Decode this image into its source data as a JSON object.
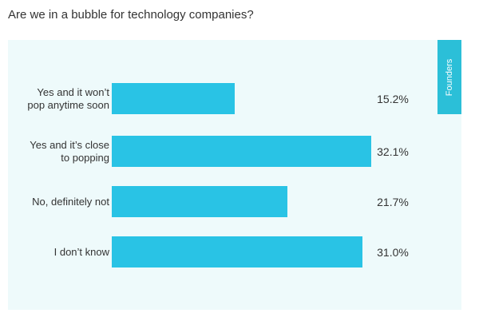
{
  "chart_data": {
    "type": "bar",
    "orientation": "horizontal",
    "title": "Are we in a bubble for technology companies?",
    "tab_label": "Founders",
    "categories": [
      "Yes and it won’t pop anytime soon",
      "Yes and it’s close to popping",
      "No, definitely not",
      "I don’t know"
    ],
    "values": [
      15.2,
      32.1,
      21.7,
      31.0
    ],
    "value_labels": [
      "15.2%",
      "32.1%",
      "21.7%",
      "31.0%"
    ],
    "color": "#29c3e5"
  }
}
